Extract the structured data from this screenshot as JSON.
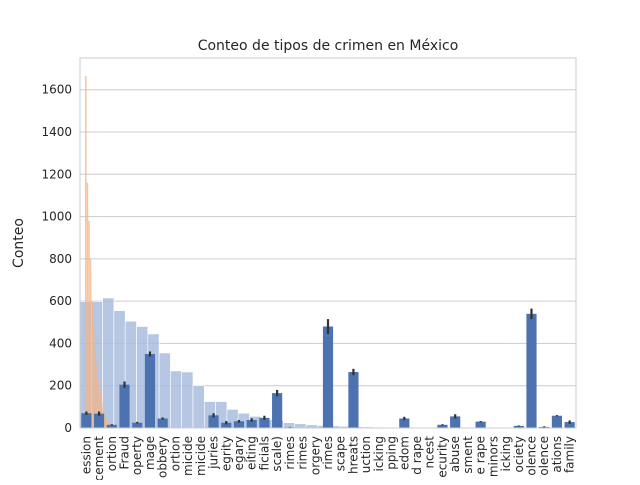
{
  "chart_data": {
    "type": "bar",
    "title": "Conteo de tipos de crimen en México",
    "xlabel": "",
    "ylabel": "Conteo",
    "ylim": [
      0,
      1750
    ],
    "yticks": [
      0,
      200,
      400,
      600,
      800,
      1000,
      1200,
      1400,
      1600
    ],
    "grid": "horizontal",
    "categories": [
      "ession",
      "cement",
      "ortion",
      "Fraud",
      "operty",
      "mage",
      "obbery",
      "ortion",
      "micide",
      "micide",
      "juries",
      "egrity",
      "egary",
      "eiting",
      "ficials",
      "scale)",
      "rimes",
      "rimes",
      "orgery",
      "rimes",
      "scape",
      "hreats",
      "uction",
      "icking",
      "pping",
      "edom",
      "d rape",
      "ncest",
      "ecurity",
      "abuse",
      "sment",
      "e rape",
      "minors",
      "icking",
      "ociety",
      "olence",
      "olence",
      "ations",
      "family"
    ],
    "series": [
      {
        "values": [
          70,
          68,
          15,
          205,
          25,
          350,
          45,
          0,
          0,
          0,
          60,
          25,
          32,
          38,
          48,
          165,
          3,
          0,
          0,
          480,
          0,
          265,
          0,
          0,
          0,
          45,
          0,
          0,
          15,
          55,
          0,
          30,
          0,
          0,
          10,
          540,
          5,
          58,
          28
        ],
        "error": [
          8,
          10,
          3,
          15,
          4,
          12,
          5,
          0,
          0,
          0,
          10,
          8,
          6,
          8,
          10,
          15,
          2,
          0,
          0,
          35,
          0,
          15,
          0,
          0,
          0,
          8,
          0,
          0,
          3,
          10,
          0,
          3,
          0,
          0,
          2,
          25,
          3,
          3,
          8
        ],
        "color": "#4c72b0"
      }
    ],
    "background_bars": {
      "values": [
        598,
        598,
        615,
        555,
        505,
        480,
        445,
        355,
        270,
        265,
        200,
        125,
        125,
        88,
        70,
        55,
        40,
        35,
        25,
        20,
        15,
        12,
        10,
        8,
        6,
        5,
        4,
        3,
        3,
        2,
        2,
        2,
        1,
        1,
        1,
        1,
        1,
        1,
        1
      ],
      "color": "#a4b9dd"
    },
    "overlay_histogram": {
      "values": [
        1665,
        1160,
        980,
        800,
        600,
        470,
        380,
        300,
        230,
        170,
        120,
        90,
        65,
        45,
        30,
        20,
        12,
        8,
        4,
        2
      ],
      "color": "#f4b486"
    }
  }
}
